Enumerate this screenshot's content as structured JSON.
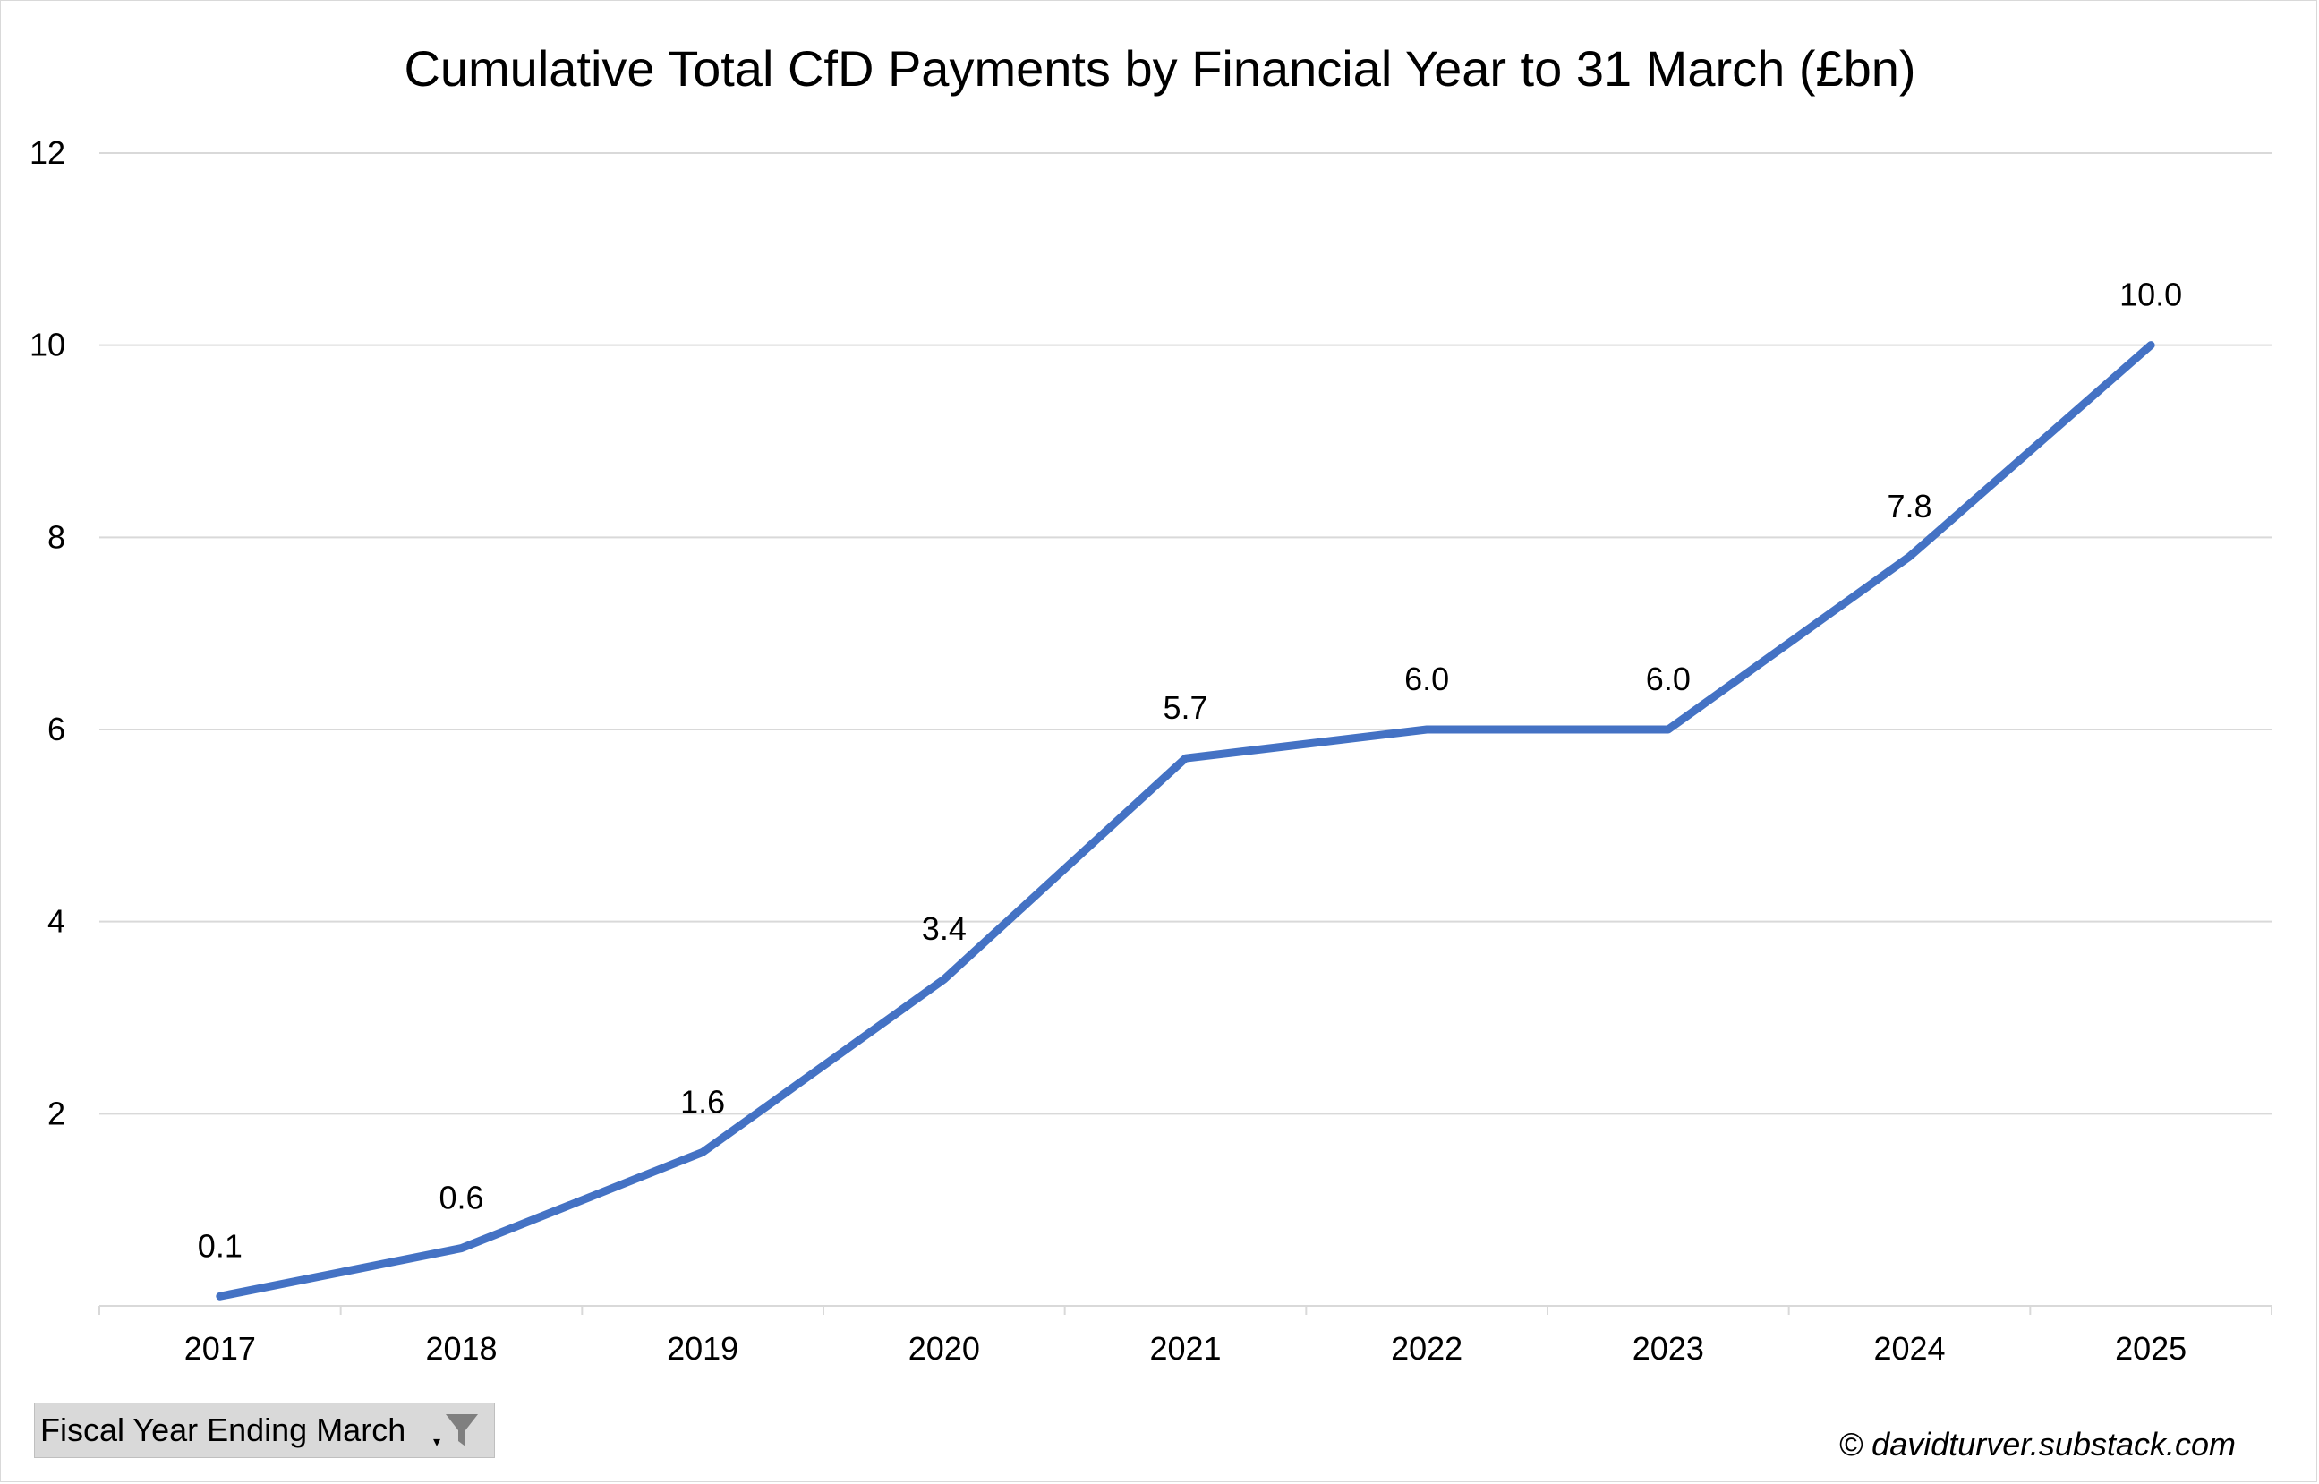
{
  "chart_data": {
    "type": "line",
    "title": "Cumulative Total CfD Payments by Financial Year to 31 March (£bn)",
    "categories": [
      "2017",
      "2018",
      "2019",
      "2020",
      "2021",
      "2022",
      "2023",
      "2024",
      "2025"
    ],
    "series": [
      {
        "values": [
          0.1,
          0.6,
          1.6,
          3.4,
          5.7,
          6.0,
          6.0,
          7.8,
          10.0
        ],
        "data_labels": [
          "0.1",
          "0.6",
          "1.6",
          "3.4",
          "5.7",
          "6.0",
          "6.0",
          "7.8",
          "10.0"
        ],
        "color": "#4472c4"
      }
    ],
    "ylim": [
      0,
      12
    ],
    "yticks": [
      "2",
      "4",
      "6",
      "8",
      "10",
      "12"
    ],
    "ytick_values": [
      2,
      4,
      6,
      8,
      10,
      12
    ],
    "grid": true,
    "legend": "none",
    "gridline_color": "#d9d9d9"
  },
  "filter": {
    "label": "Fiscal Year Ending March",
    "dropdown_icon": "dropdown-arrow-icon",
    "funnel_icon": "filter-funnel-icon"
  },
  "footer": {
    "copyright": "© davidturver.substack.com"
  }
}
